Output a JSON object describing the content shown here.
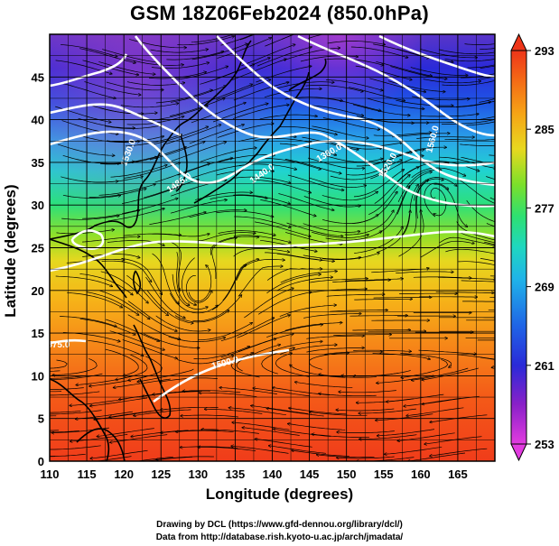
{
  "title": "GSM 18Z06Feb2024 (850.0hPa)",
  "x_axis": {
    "label": "Longitude (degrees)",
    "ticks": [
      "110",
      "115",
      "120",
      "125",
      "130",
      "135",
      "140",
      "145",
      "150",
      "155",
      "160",
      "165"
    ]
  },
  "y_axis": {
    "label": "Latitude  (degrees)",
    "ticks": [
      "0",
      "5",
      "10",
      "15",
      "20",
      "25",
      "30",
      "35",
      "40",
      "45"
    ]
  },
  "colorbar": {
    "ticks": [
      "253",
      "261",
      "269",
      "277",
      "285",
      "293"
    ],
    "colors": [
      "#d63bd6",
      "#7c1cc4",
      "#1c2fd8",
      "#1c8ee8",
      "#16d7e0",
      "#19e38a",
      "#55e02a",
      "#b4e51d",
      "#f2d91d",
      "#f6a416",
      "#f46d16",
      "#ee3519"
    ]
  },
  "contour_labels": [
    "1530.0",
    "1485.0",
    "1440.0",
    "1380.0",
    "1320.0",
    "1560.0",
    "1500.0",
    "1575.0"
  ],
  "credits": {
    "line1": "Drawing by DCL (https://www.gfd-dennou.org/library/dcl/)",
    "line2": "Data from http://database.rish.kyoto-u.ac.jp/arch/jmadata/"
  }
}
